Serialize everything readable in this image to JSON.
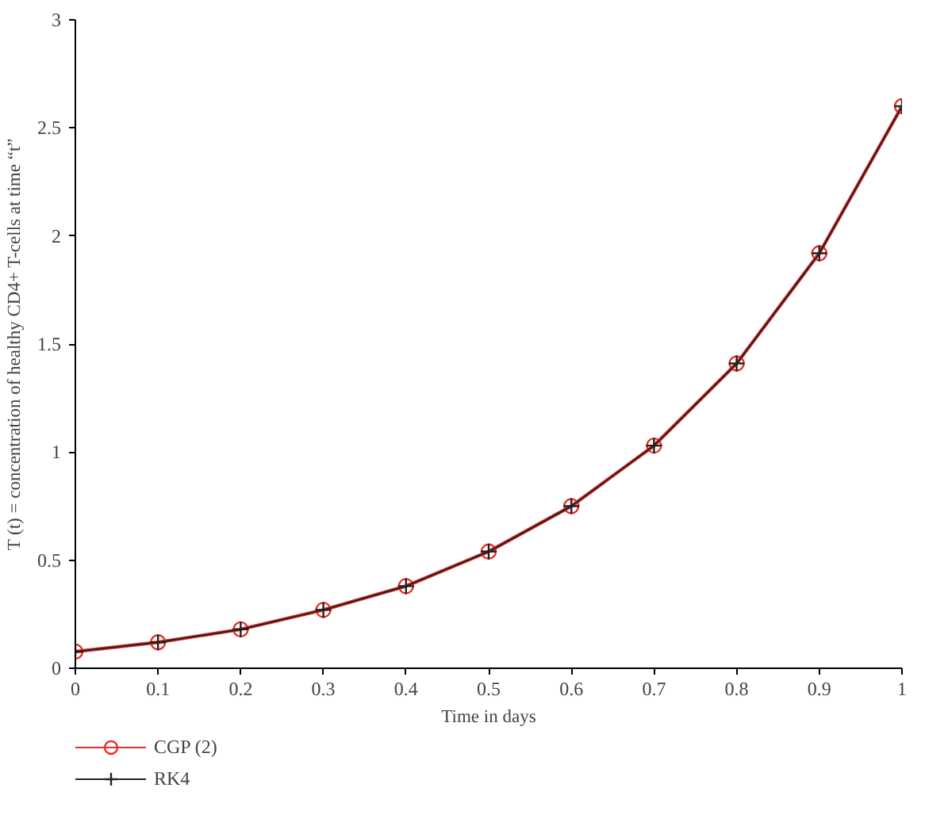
{
  "chart_data": {
    "type": "line",
    "xlabel": "Time in days",
    "ylabel": "T (t) = concentration of healthy CD4+ T-cells at time “t”",
    "x": [
      0,
      0.1,
      0.2,
      0.3,
      0.4,
      0.5,
      0.6,
      0.7,
      0.8,
      0.9,
      1
    ],
    "series": [
      {
        "name": "CGP (2)",
        "color": "#e8302a",
        "marker": "circle",
        "values": [
          0.077,
          0.12,
          0.18,
          0.27,
          0.38,
          0.54,
          0.75,
          1.03,
          1.41,
          1.92,
          2.6
        ]
      },
      {
        "name": "RK4",
        "color": "#222222",
        "marker": "cross",
        "values": [
          0.077,
          0.12,
          0.18,
          0.27,
          0.38,
          0.54,
          0.75,
          1.03,
          1.41,
          1.92,
          2.6
        ]
      }
    ],
    "xlim": [
      0,
      1
    ],
    "ylim": [
      0,
      3
    ],
    "xticks": [
      0,
      0.1,
      0.2,
      0.3,
      0.4,
      0.5,
      0.6,
      0.7,
      0.8,
      0.9,
      1
    ],
    "yticks": [
      0,
      0.5,
      1,
      1.5,
      2,
      2.5,
      3
    ],
    "grid": false,
    "legend": "bottom left",
    "line_style": "solid"
  }
}
